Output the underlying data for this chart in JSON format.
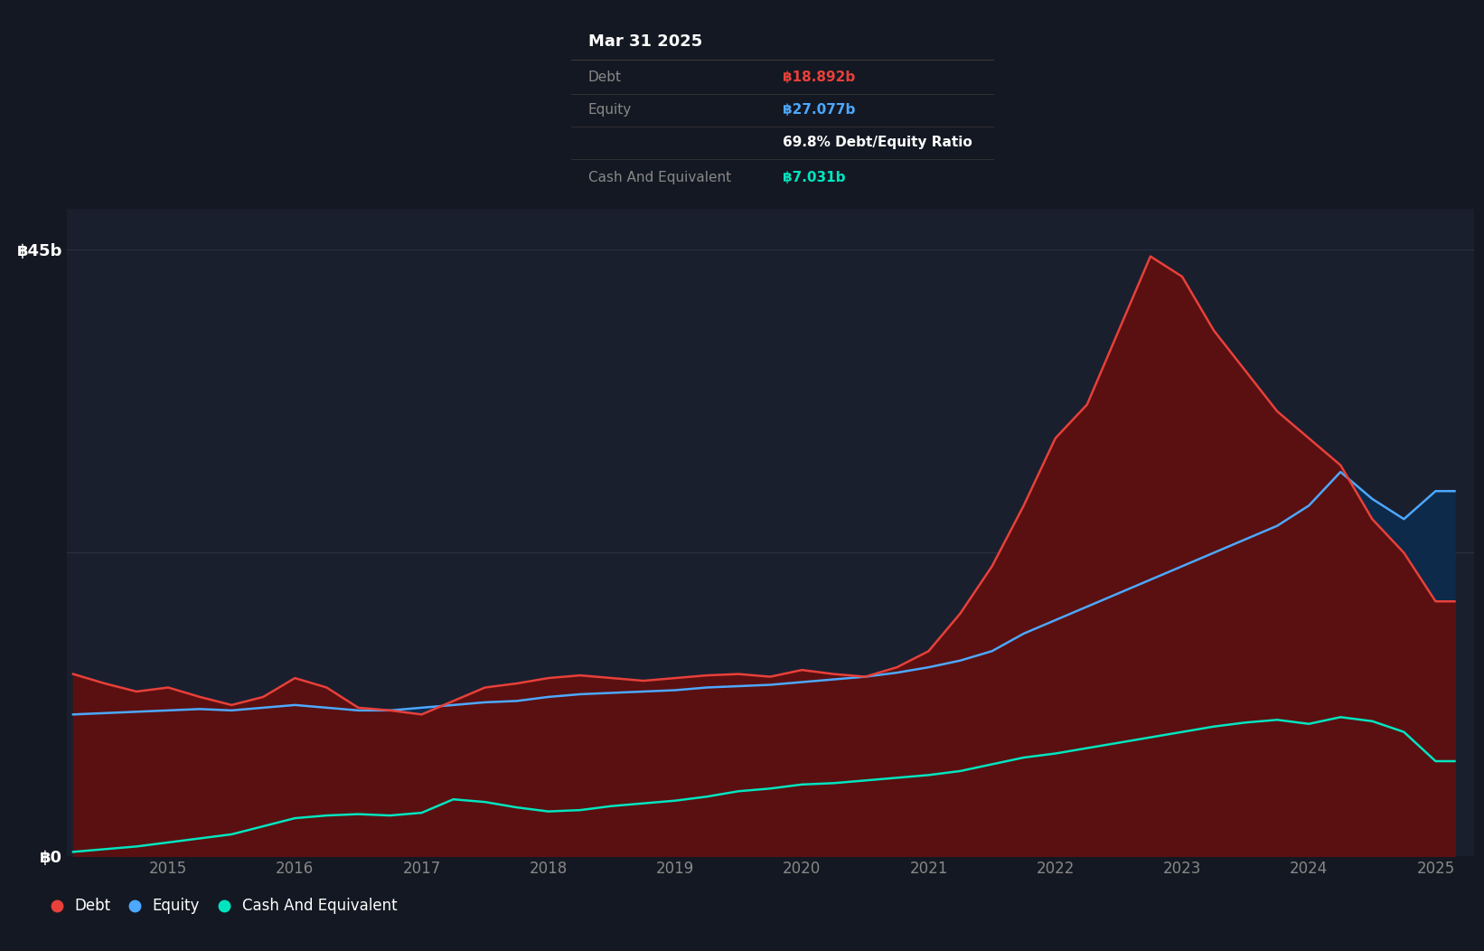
{
  "bg_color": "#141822",
  "plot_bg_color": "#1a1f2e",
  "grid_color": "#2a3040",
  "debt_color": "#e8403a",
  "equity_color": "#4da8ff",
  "cash_color": "#00e5c0",
  "debt_fill": "#5a1010",
  "equity_fill": "#0d2a4a",
  "cash_fill": "#083830",
  "tooltip_bg": "#080808",
  "tooltip_title": "Mar 31 2025",
  "tooltip_debt_label": "Debt",
  "tooltip_debt_value": "฿18.892b",
  "tooltip_equity_label": "Equity",
  "tooltip_equity_value": "฿27.077b",
  "tooltip_ratio": "69.8% Debt/Equity Ratio",
  "tooltip_cash_label": "Cash And Equivalent",
  "tooltip_cash_value": "฿7.031b",
  "ylabel_45b": "฿45b",
  "ylabel_0": "฿0",
  "x_labels": [
    "2015",
    "2016",
    "2017",
    "2018",
    "2019",
    "2020",
    "2021",
    "2022",
    "2023",
    "2024",
    "2025"
  ],
  "dates": [
    2014.25,
    2014.5,
    2014.75,
    2015.0,
    2015.25,
    2015.5,
    2015.75,
    2016.0,
    2016.25,
    2016.5,
    2016.75,
    2017.0,
    2017.25,
    2017.5,
    2017.75,
    2018.0,
    2018.25,
    2018.5,
    2018.75,
    2019.0,
    2019.25,
    2019.5,
    2019.75,
    2020.0,
    2020.25,
    2020.5,
    2020.75,
    2021.0,
    2021.25,
    2021.5,
    2021.75,
    2022.0,
    2022.25,
    2022.5,
    2022.75,
    2023.0,
    2023.25,
    2023.5,
    2023.75,
    2024.0,
    2024.25,
    2024.5,
    2024.75,
    2025.0,
    2025.15
  ],
  "debt": [
    13.5,
    12.8,
    12.2,
    12.5,
    11.8,
    11.2,
    11.8,
    13.2,
    12.5,
    11.0,
    10.8,
    10.5,
    11.5,
    12.5,
    12.8,
    13.2,
    13.4,
    13.2,
    13.0,
    13.2,
    13.4,
    13.5,
    13.3,
    13.8,
    13.5,
    13.3,
    14.0,
    15.2,
    18.0,
    21.5,
    26.0,
    31.0,
    33.5,
    39.0,
    44.5,
    43.0,
    39.0,
    36.0,
    33.0,
    31.0,
    29.0,
    25.0,
    22.5,
    18.892,
    18.892
  ],
  "equity": [
    10.5,
    10.6,
    10.7,
    10.8,
    10.9,
    10.8,
    11.0,
    11.2,
    11.0,
    10.8,
    10.8,
    11.0,
    11.2,
    11.4,
    11.5,
    11.8,
    12.0,
    12.1,
    12.2,
    12.3,
    12.5,
    12.6,
    12.7,
    12.9,
    13.1,
    13.3,
    13.6,
    14.0,
    14.5,
    15.2,
    16.5,
    17.5,
    18.5,
    19.5,
    20.5,
    21.5,
    22.5,
    23.5,
    24.5,
    26.0,
    28.5,
    26.5,
    25.0,
    27.077,
    27.077
  ],
  "cash": [
    0.3,
    0.5,
    0.7,
    1.0,
    1.3,
    1.6,
    2.2,
    2.8,
    3.0,
    3.1,
    3.0,
    3.2,
    4.2,
    4.0,
    3.6,
    3.3,
    3.4,
    3.7,
    3.9,
    4.1,
    4.4,
    4.8,
    5.0,
    5.3,
    5.4,
    5.6,
    5.8,
    6.0,
    6.3,
    6.8,
    7.3,
    7.6,
    8.0,
    8.4,
    8.8,
    9.2,
    9.6,
    9.9,
    10.1,
    9.8,
    10.3,
    10.0,
    9.2,
    7.031,
    7.031
  ],
  "ylim": [
    0,
    48
  ],
  "xlim": [
    2014.2,
    2025.3
  ]
}
